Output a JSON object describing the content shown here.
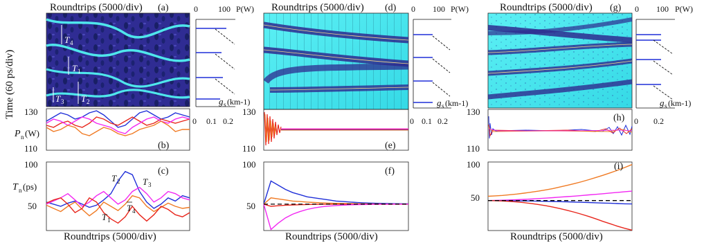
{
  "figure": {
    "x_caption": "Roundtrips (5000/div)",
    "y_caption_time": "Time (60 ps/div)",
    "power_caption": "P(W)",
    "gain_caption": "g",
    "gain_sub": "s",
    "gain_unit": "(km-1)",
    "pn_caption": "P",
    "pn_sub": "n",
    "pn_unit": "(W)",
    "tn_caption": "T",
    "tn_sub": "n",
    "tn_unit": "(ps)"
  },
  "panel_letters": [
    "(a)",
    "(b)",
    "(c)",
    "(d)",
    "(e)",
    "(f)",
    "(g)",
    "(h)",
    "(i)"
  ],
  "colors": {
    "map_dark": "#2b2a8c",
    "map_light": "#43e6ee",
    "blue": "#1f2fd8",
    "red": "#e8261c",
    "orange": "#f07a23",
    "magenta": "#f227f2",
    "black": "#000000"
  },
  "columns": [
    {
      "id": "left",
      "map_style": "chaotic",
      "power_ticks": [
        "0",
        "100"
      ],
      "gain_ticks": [
        "0",
        "0.1",
        "0.2"
      ],
      "pn_ticks": [
        "130",
        "110"
      ],
      "tn_ticks": [
        "100",
        "50"
      ],
      "map_labels": [
        {
          "main": "T",
          "sub": "4"
        },
        {
          "main": "T",
          "sub": "1"
        },
        {
          "main": "T",
          "sub": "3"
        },
        {
          "main": "T",
          "sub": "2"
        }
      ],
      "tn_labels": [
        {
          "main": "T",
          "sub": "2"
        },
        {
          "main": "T",
          "sub": "3"
        },
        {
          "main": "T",
          "sub": "4"
        },
        {
          "main": "T",
          "sub": "1"
        }
      ]
    },
    {
      "id": "middle",
      "map_style": "converging",
      "power_ticks": [
        "0",
        "100"
      ],
      "gain_ticks": [
        "0",
        "0.1",
        "0.2"
      ],
      "pn_ticks": [
        "130",
        "110"
      ],
      "tn_ticks": [
        "100",
        "50"
      ]
    },
    {
      "id": "right",
      "map_style": "diverging",
      "power_ticks": [
        "0",
        "100"
      ],
      "gain_ticks": [
        "0",
        "0.2"
      ],
      "pn_ticks": [
        "130",
        "110"
      ],
      "tn_ticks": [
        "100",
        "50"
      ]
    }
  ],
  "chart_data": [
    {
      "type": "line",
      "panel": "(c)",
      "xlabel": "Roundtrips (5000/div)",
      "ylabel": "Tn(ps)",
      "ylim": [
        35,
        100
      ],
      "x": [
        0,
        1,
        2,
        3,
        4,
        5,
        6,
        7,
        8,
        9,
        10,
        11,
        12,
        13,
        14,
        15,
        16,
        17,
        18,
        19,
        20
      ],
      "series": [
        {
          "name": "T2",
          "color": "#1f2fd8",
          "values": [
            62,
            60,
            58,
            61,
            63,
            60,
            57,
            59,
            64,
            70,
            82,
            91,
            88,
            72,
            62,
            56,
            60,
            66,
            63,
            68,
            66
          ]
        },
        {
          "name": "T3",
          "color": "#f227f2",
          "values": [
            60,
            63,
            66,
            70,
            64,
            58,
            62,
            68,
            72,
            66,
            60,
            64,
            72,
            76,
            70,
            62,
            66,
            72,
            70,
            66,
            64
          ]
        },
        {
          "name": "T4",
          "color": "#f07a23",
          "values": [
            59,
            56,
            53,
            58,
            62,
            55,
            49,
            54,
            62,
            58,
            54,
            60,
            68,
            66,
            58,
            53,
            57,
            61,
            58,
            56,
            57
          ]
        },
        {
          "name": "T1",
          "color": "#e8261c",
          "values": [
            61,
            64,
            66,
            60,
            52,
            56,
            66,
            62,
            52,
            46,
            42,
            48,
            58,
            50,
            44,
            50,
            58,
            55,
            50,
            48,
            52
          ]
        }
      ]
    },
    {
      "type": "line",
      "panel": "(f)",
      "xlabel": "Roundtrips (5000/div)",
      "ylim": [
        35,
        100
      ],
      "x": [
        0,
        1,
        2,
        3,
        4,
        5,
        6,
        7,
        8,
        9,
        10,
        11,
        12,
        13,
        14,
        15,
        16,
        17,
        18,
        19,
        20
      ],
      "series": [
        {
          "color": "#1f2fd8",
          "values": [
            60,
            82,
            78,
            74,
            71,
            69,
            67,
            66,
            65,
            64,
            63,
            62.5,
            62,
            61.5,
            61.2,
            61,
            60.8,
            60.6,
            60.5,
            60.4,
            60.3
          ]
        },
        {
          "color": "#f07a23",
          "values": [
            60,
            66,
            65,
            64,
            63,
            62.5,
            62,
            61.6,
            61.3,
            61,
            60.8,
            60.6,
            60.5,
            60.4,
            60.3,
            60.2,
            60.2,
            60.1,
            60.1,
            60.1,
            60
          ]
        },
        {
          "color": "#e8261c",
          "values": [
            60,
            58,
            58.5,
            59,
            59.3,
            59.5,
            59.7,
            59.8,
            59.9,
            59.9,
            60,
            60,
            60,
            60,
            60,
            60,
            60,
            60,
            60,
            60,
            60
          ]
        },
        {
          "color": "#f227f2",
          "values": [
            60,
            36,
            42,
            47,
            50.5,
            53,
            55,
            56.5,
            57.5,
            58.2,
            58.7,
            59.1,
            59.4,
            59.6,
            59.7,
            59.8,
            59.9,
            59.9,
            60,
            60,
            60
          ]
        },
        {
          "color": "#000000",
          "dashed": true,
          "values": [
            60,
            60,
            60,
            60,
            60,
            60,
            60,
            60,
            60,
            60,
            60,
            60,
            60,
            60,
            60,
            60,
            60,
            60,
            60,
            60,
            60
          ]
        }
      ]
    },
    {
      "type": "line",
      "panel": "(i)",
      "xlabel": "Roundtrips (5000/div)",
      "ylim": [
        25,
        105
      ],
      "x": [
        0,
        1,
        2,
        3,
        4,
        5,
        6,
        7,
        8,
        9,
        10,
        11,
        12,
        13,
        14,
        15,
        16,
        17,
        18,
        19,
        20
      ],
      "series": [
        {
          "color": "#f07a23",
          "values": [
            65,
            65.5,
            66,
            66.8,
            67.6,
            68.6,
            69.8,
            71,
            72.4,
            74,
            75.8,
            77.8,
            79.8,
            82,
            84.4,
            87,
            89.6,
            92.4,
            95.4,
            98.6,
            102
          ]
        },
        {
          "color": "#f227f2",
          "values": [
            60,
            60.2,
            60.4,
            60.7,
            61,
            61.4,
            61.8,
            62.3,
            62.8,
            63.4,
            64,
            64.6,
            65.2,
            65.9,
            66.6,
            67.3,
            68,
            68.8,
            69.5,
            70.3,
            71
          ]
        },
        {
          "color": "#1f2fd8",
          "values": [
            60,
            60,
            59.9,
            59.8,
            59.7,
            59.6,
            59.5,
            59.3,
            59.1,
            58.9,
            58.7,
            58.5,
            58.2,
            58,
            57.7,
            57.4,
            57.1,
            56.8,
            56.5,
            56.2,
            56
          ]
        },
        {
          "color": "#e8261c",
          "values": [
            60,
            59.8,
            59.5,
            59,
            58.4,
            57.6,
            56.6,
            55.4,
            54,
            52.4,
            50.6,
            48.6,
            46.4,
            44,
            41.4,
            38.6,
            35.6,
            32.8,
            30,
            27.6,
            25.5
          ]
        },
        {
          "color": "#000000",
          "dashed": true,
          "values": [
            60,
            60,
            60,
            60,
            60,
            60,
            60,
            60,
            60,
            60,
            60,
            60,
            60,
            60,
            60,
            60,
            60,
            60,
            60,
            60,
            60
          ]
        }
      ]
    },
    {
      "type": "line",
      "panel": "(b)",
      "ylabel": "Pn(W)",
      "ylim": [
        110,
        130
      ],
      "x": [
        0,
        1,
        2,
        3,
        4,
        5,
        6,
        7,
        8,
        9,
        10,
        11,
        12,
        13,
        14,
        15,
        16,
        17,
        18,
        19,
        20
      ],
      "series": [
        {
          "color": "#1f2fd8",
          "values": [
            124,
            126,
            128,
            127,
            125,
            126,
            128,
            129,
            127,
            124,
            121,
            122,
            125,
            128,
            129,
            127,
            125,
            126,
            128,
            127,
            126
          ]
        },
        {
          "color": "#e8261c",
          "values": [
            122,
            121,
            123,
            124,
            122,
            121,
            123,
            126,
            125,
            123,
            122,
            124,
            126,
            124,
            122,
            123,
            125,
            124,
            123,
            124,
            125
          ]
        },
        {
          "color": "#f227f2",
          "values": [
            123,
            125,
            124,
            122,
            124,
            126,
            125,
            123,
            122,
            121,
            119,
            118,
            121,
            123,
            125,
            126,
            124,
            123,
            125,
            126,
            125
          ]
        },
        {
          "color": "#f07a23",
          "values": [
            121,
            119,
            120,
            122,
            121,
            118,
            117,
            119,
            121,
            120,
            118,
            117,
            118,
            120,
            121,
            122,
            124,
            122,
            119,
            120,
            120
          ]
        }
      ]
    }
  ]
}
